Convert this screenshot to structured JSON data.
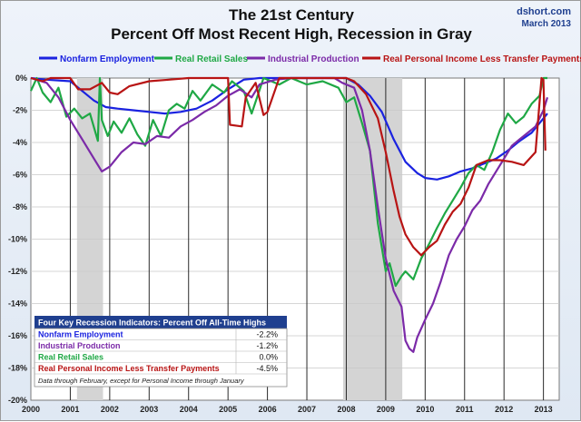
{
  "chart_data": {
    "type": "line",
    "title": "The 21st Century",
    "subtitle": "Percent Off Most Recent High, Recession in Gray",
    "source": "dshort.com",
    "source_date": "March 2013",
    "xlim": [
      2000,
      2013.4
    ],
    "ylim": [
      -20,
      0
    ],
    "x_ticks": [
      "2000",
      "2001",
      "2002",
      "2003",
      "2004",
      "2005",
      "2006",
      "2007",
      "2008",
      "2009",
      "2010",
      "2011",
      "2012",
      "2013"
    ],
    "y_ticks": [
      "0%",
      "-2%",
      "-4%",
      "-6%",
      "-8%",
      "-10%",
      "-12%",
      "-14%",
      "-16%",
      "-18%",
      "-20%"
    ],
    "grid": true,
    "legend_position": "top",
    "recessions": [
      [
        2001.17,
        2001.83
      ],
      [
        2007.92,
        2009.42
      ]
    ],
    "series": [
      {
        "name": "Nonfarm Employment",
        "color": "#1a22e0",
        "points": [
          [
            2000.0,
            0
          ],
          [
            2000.4,
            -0.1
          ],
          [
            2001.0,
            -0.2
          ],
          [
            2001.3,
            -0.8
          ],
          [
            2001.6,
            -1.4
          ],
          [
            2001.9,
            -1.8
          ],
          [
            2002.2,
            -1.9
          ],
          [
            2002.6,
            -2.0
          ],
          [
            2003.0,
            -2.1
          ],
          [
            2003.4,
            -2.2
          ],
          [
            2003.8,
            -2.1
          ],
          [
            2004.2,
            -1.9
          ],
          [
            2004.6,
            -1.4
          ],
          [
            2005.0,
            -0.7
          ],
          [
            2005.4,
            -0.1
          ],
          [
            2005.8,
            0
          ],
          [
            2006.5,
            0
          ],
          [
            2007.5,
            0
          ],
          [
            2008.0,
            0
          ],
          [
            2008.3,
            -0.4
          ],
          [
            2008.6,
            -1.1
          ],
          [
            2008.9,
            -2.1
          ],
          [
            2009.2,
            -3.8
          ],
          [
            2009.5,
            -5.2
          ],
          [
            2009.8,
            -5.9
          ],
          [
            2010.0,
            -6.2
          ],
          [
            2010.3,
            -6.3
          ],
          [
            2010.6,
            -6.1
          ],
          [
            2010.9,
            -5.8
          ],
          [
            2011.2,
            -5.6
          ],
          [
            2011.5,
            -5.3
          ],
          [
            2011.8,
            -5.0
          ],
          [
            2012.1,
            -4.5
          ],
          [
            2012.4,
            -3.9
          ],
          [
            2012.7,
            -3.4
          ],
          [
            2013.1,
            -2.2
          ]
        ]
      },
      {
        "name": "Real Retail Sales",
        "color": "#1fa845",
        "points": [
          [
            2000.0,
            -0.8
          ],
          [
            2000.15,
            0
          ],
          [
            2000.3,
            -0.9
          ],
          [
            2000.5,
            -1.5
          ],
          [
            2000.7,
            -0.6
          ],
          [
            2000.9,
            -2.4
          ],
          [
            2001.1,
            -1.9
          ],
          [
            2001.3,
            -2.5
          ],
          [
            2001.5,
            -2.2
          ],
          [
            2001.7,
            -3.9
          ],
          [
            2001.75,
            0
          ],
          [
            2001.8,
            -2.6
          ],
          [
            2001.95,
            -3.6
          ],
          [
            2002.1,
            -2.7
          ],
          [
            2002.3,
            -3.4
          ],
          [
            2002.5,
            -2.5
          ],
          [
            2002.7,
            -3.5
          ],
          [
            2002.9,
            -4.2
          ],
          [
            2003.1,
            -2.6
          ],
          [
            2003.3,
            -3.6
          ],
          [
            2003.5,
            -2.0
          ],
          [
            2003.7,
            -1.6
          ],
          [
            2003.9,
            -1.9
          ],
          [
            2004.1,
            -0.8
          ],
          [
            2004.3,
            -1.4
          ],
          [
            2004.6,
            -0.4
          ],
          [
            2004.9,
            -0.9
          ],
          [
            2005.1,
            -0.2
          ],
          [
            2005.4,
            -0.8
          ],
          [
            2005.6,
            -2.2
          ],
          [
            2005.9,
            0
          ],
          [
            2006.3,
            -0.4
          ],
          [
            2006.6,
            0
          ],
          [
            2007.0,
            -0.4
          ],
          [
            2007.4,
            -0.2
          ],
          [
            2007.8,
            -0.6
          ],
          [
            2008.0,
            -1.5
          ],
          [
            2008.2,
            -1.2
          ],
          [
            2008.4,
            -2.8
          ],
          [
            2008.6,
            -4.5
          ],
          [
            2008.8,
            -9.0
          ],
          [
            2009.0,
            -12.0
          ],
          [
            2009.1,
            -11.5
          ],
          [
            2009.25,
            -12.9
          ],
          [
            2009.4,
            -12.3
          ],
          [
            2009.5,
            -12.0
          ],
          [
            2009.7,
            -12.5
          ],
          [
            2009.9,
            -11.2
          ],
          [
            2010.1,
            -10.3
          ],
          [
            2010.3,
            -9.3
          ],
          [
            2010.5,
            -8.4
          ],
          [
            2010.7,
            -7.6
          ],
          [
            2010.9,
            -6.8
          ],
          [
            2011.1,
            -5.9
          ],
          [
            2011.3,
            -5.4
          ],
          [
            2011.5,
            -5.7
          ],
          [
            2011.7,
            -4.6
          ],
          [
            2011.9,
            -3.2
          ],
          [
            2012.1,
            -2.2
          ],
          [
            2012.3,
            -2.8
          ],
          [
            2012.5,
            -2.4
          ],
          [
            2012.7,
            -1.6
          ],
          [
            2012.9,
            -1.1
          ],
          [
            2013.0,
            0
          ],
          [
            2013.1,
            0
          ]
        ]
      },
      {
        "name": "Industrial Production",
        "color": "#7b2aa8",
        "points": [
          [
            2000.0,
            0
          ],
          [
            2000.4,
            -0.3
          ],
          [
            2000.7,
            -1.2
          ],
          [
            2001.0,
            -2.6
          ],
          [
            2001.3,
            -3.8
          ],
          [
            2001.6,
            -5.0
          ],
          [
            2001.8,
            -5.8
          ],
          [
            2002.0,
            -5.5
          ],
          [
            2002.3,
            -4.6
          ],
          [
            2002.6,
            -4.0
          ],
          [
            2002.9,
            -4.1
          ],
          [
            2003.2,
            -3.6
          ],
          [
            2003.5,
            -3.7
          ],
          [
            2003.8,
            -3.0
          ],
          [
            2004.1,
            -2.6
          ],
          [
            2004.4,
            -2.1
          ],
          [
            2004.7,
            -1.7
          ],
          [
            2005.0,
            -1.1
          ],
          [
            2005.3,
            -0.7
          ],
          [
            2005.6,
            -1.2
          ],
          [
            2005.8,
            -0.4
          ],
          [
            2006.2,
            -0.1
          ],
          [
            2006.6,
            0
          ],
          [
            2007.2,
            0
          ],
          [
            2007.7,
            0
          ],
          [
            2007.9,
            -0.3
          ],
          [
            2008.2,
            -0.6
          ],
          [
            2008.4,
            -2.0
          ],
          [
            2008.6,
            -4.5
          ],
          [
            2008.8,
            -8.0
          ],
          [
            2009.0,
            -11.2
          ],
          [
            2009.2,
            -13.2
          ],
          [
            2009.4,
            -14.2
          ],
          [
            2009.5,
            -16.3
          ],
          [
            2009.6,
            -16.8
          ],
          [
            2009.7,
            -17.0
          ],
          [
            2009.8,
            -16.1
          ],
          [
            2010.0,
            -15.0
          ],
          [
            2010.2,
            -14.0
          ],
          [
            2010.4,
            -12.6
          ],
          [
            2010.6,
            -11.0
          ],
          [
            2010.8,
            -10.0
          ],
          [
            2011.0,
            -9.2
          ],
          [
            2011.2,
            -8.2
          ],
          [
            2011.4,
            -7.6
          ],
          [
            2011.6,
            -6.6
          ],
          [
            2011.8,
            -5.8
          ],
          [
            2012.0,
            -5.0
          ],
          [
            2012.2,
            -4.2
          ],
          [
            2012.4,
            -3.8
          ],
          [
            2012.6,
            -3.4
          ],
          [
            2012.8,
            -3.0
          ],
          [
            2013.0,
            -2.0
          ],
          [
            2013.1,
            -1.2
          ]
        ]
      },
      {
        "name": "Real Personal Income Less Transfer Payments",
        "color": "#b81414",
        "points": [
          [
            2000.0,
            0
          ],
          [
            2000.3,
            -0.2
          ],
          [
            2000.5,
            0
          ],
          [
            2001.0,
            0
          ],
          [
            2001.2,
            -0.7
          ],
          [
            2001.5,
            -0.7
          ],
          [
            2001.8,
            -0.3
          ],
          [
            2002.0,
            -0.9
          ],
          [
            2002.2,
            -1.0
          ],
          [
            2002.5,
            -0.5
          ],
          [
            2003.0,
            -0.2
          ],
          [
            2003.5,
            -0.1
          ],
          [
            2004.0,
            0
          ],
          [
            2005.0,
            0
          ],
          [
            2005.05,
            -2.9
          ],
          [
            2005.35,
            -3.0
          ],
          [
            2005.45,
            -1.2
          ],
          [
            2005.7,
            -0.3
          ],
          [
            2005.9,
            -2.3
          ],
          [
            2006.0,
            -2.1
          ],
          [
            2006.3,
            0
          ],
          [
            2007.0,
            0
          ],
          [
            2007.8,
            0
          ],
          [
            2008.0,
            0
          ],
          [
            2008.2,
            -0.2
          ],
          [
            2008.5,
            -1.0
          ],
          [
            2008.8,
            -2.5
          ],
          [
            2009.0,
            -4.6
          ],
          [
            2009.2,
            -7.0
          ],
          [
            2009.35,
            -8.6
          ],
          [
            2009.5,
            -9.7
          ],
          [
            2009.7,
            -10.5
          ],
          [
            2009.9,
            -11.0
          ],
          [
            2010.1,
            -10.5
          ],
          [
            2010.3,
            -10.1
          ],
          [
            2010.5,
            -9.1
          ],
          [
            2010.7,
            -8.3
          ],
          [
            2010.9,
            -7.8
          ],
          [
            2011.1,
            -6.8
          ],
          [
            2011.3,
            -5.4
          ],
          [
            2011.6,
            -5.1
          ],
          [
            2011.9,
            -5.1
          ],
          [
            2012.2,
            -5.2
          ],
          [
            2012.5,
            -5.4
          ],
          [
            2012.8,
            -4.6
          ],
          [
            2012.95,
            0
          ],
          [
            2013.0,
            -0.1
          ],
          [
            2013.05,
            -4.5
          ]
        ]
      }
    ],
    "table": {
      "title": "Four Key Recession Indicators: Percent Off All-Time Highs",
      "rows": [
        {
          "label": "Nonfarm Employment",
          "value": "-2.2%",
          "color": "#1a22e0"
        },
        {
          "label": "Industrial Production",
          "value": "-1.2%",
          "color": "#7b2aa8"
        },
        {
          "label": "Real Retail Sales",
          "value": "0.0%",
          "color": "#1fa845"
        },
        {
          "label": "Real Personal Income Less Transfer Payments",
          "value": "-4.5%",
          "color": "#b81414"
        }
      ],
      "footnote": "Data through February, except for Personal Income through January"
    }
  }
}
